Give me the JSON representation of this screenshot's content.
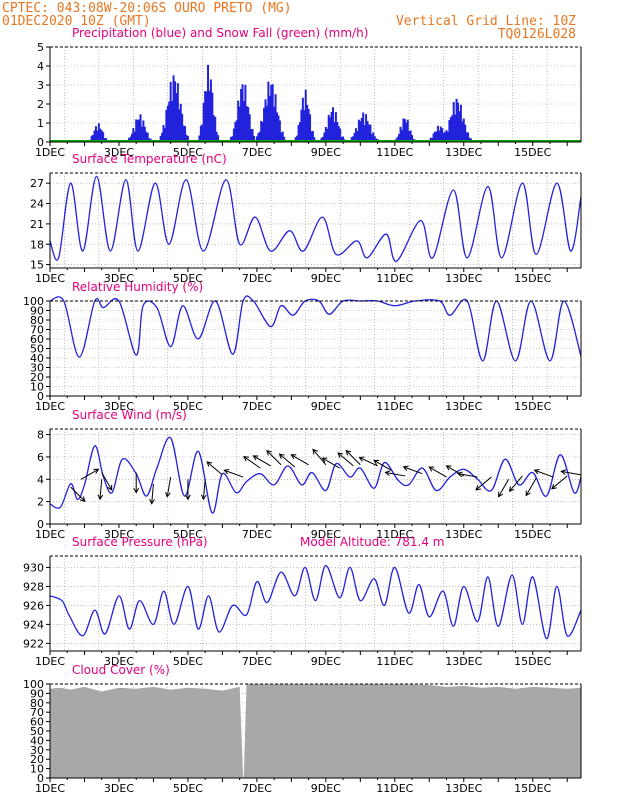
{
  "header": {
    "line1_left": "CPTEC:   043:08W-20:06S  OURO PRETO (MG)",
    "line2_left": "01DEC2020 10Z (GMT)",
    "line1_right": "Vertical Grid Line: 10Z",
    "line2_right": "TQ0126L028"
  },
  "colors": {
    "header": "#e87722",
    "title": "#e5007e",
    "series": "#2222dd",
    "snow": "#00aa00",
    "cloud": "#a8a8a8",
    "arrow": "#000000"
  },
  "chart_data": [
    {
      "id": "precip",
      "type": "bar",
      "title": "Precipitation (blue) and Snow Fall (green) (mm/h)",
      "ylim": [
        0,
        5
      ],
      "yticks": [
        0,
        1,
        2,
        3,
        4,
        5
      ],
      "xtick_labels": [
        "1DEC",
        "3DEC",
        "5DEC",
        "7DEC",
        "9DEC",
        "11DEC",
        "13DEC",
        "15DEC"
      ],
      "x_unit": "days since 01DEC 00Z",
      "series": [
        {
          "name": "Precipitation",
          "peaks": [
            [
              1.4,
              1.0
            ],
            [
              2.6,
              1.5
            ],
            [
              3.6,
              3.7
            ],
            [
              4.6,
              4.1
            ],
            [
              5.6,
              3.3
            ],
            [
              6.4,
              3.4
            ],
            [
              7.4,
              2.8
            ],
            [
              8.2,
              1.9
            ],
            [
              9.1,
              1.6
            ],
            [
              10.3,
              1.4
            ],
            [
              11.3,
              0.9
            ],
            [
              11.8,
              2.4
            ]
          ]
        },
        {
          "name": "Snow Fall",
          "values": [
            0
          ]
        }
      ]
    },
    {
      "id": "temp",
      "type": "line",
      "title": "Surface Temperature (nC)",
      "ylim": [
        14.5,
        28.5
      ],
      "yticks": [
        15,
        18,
        21,
        24,
        27
      ],
      "xtick_labels": [
        "1DEC",
        "3DEC",
        "5DEC",
        "7DEC",
        "9DEC",
        "11DEC",
        "13DEC",
        "15DEC"
      ],
      "x": [
        0,
        0.25,
        0.6,
        0.95,
        1.35,
        1.75,
        2.2,
        2.55,
        3.05,
        3.45,
        3.95,
        4.45,
        5.1,
        5.5,
        5.95,
        6.4,
        6.95,
        7.35,
        7.9,
        8.3,
        8.9,
        9.2,
        9.75,
        10.05,
        10.75,
        11.1,
        11.7,
        12.1,
        12.7,
        13.1,
        13.7,
        14.1,
        14.7,
        15.1,
        15.4
      ],
      "values": [
        18.5,
        16,
        27,
        17,
        28,
        17,
        27.5,
        17,
        27,
        18,
        27.5,
        17,
        27.5,
        18,
        22,
        17,
        20,
        17,
        22,
        16.5,
        18.5,
        16,
        19.5,
        15.5,
        21.5,
        16,
        26,
        16,
        26.5,
        16,
        27,
        16.5,
        27,
        17,
        25
      ]
    },
    {
      "id": "rh",
      "type": "line",
      "title": "Relative Humidity (%)",
      "ylim": [
        0,
        100
      ],
      "yticks": [
        0,
        10,
        20,
        30,
        40,
        50,
        60,
        70,
        80,
        90,
        100
      ],
      "xtick_labels": [
        "1DEC",
        "3DEC",
        "5DEC",
        "7DEC",
        "9DEC",
        "11DEC",
        "13DEC",
        "15DEC"
      ],
      "x": [
        0,
        0.4,
        0.85,
        1.3,
        1.55,
        2.0,
        2.5,
        2.7,
        3.1,
        3.5,
        3.85,
        4.3,
        4.8,
        5.3,
        5.6,
        5.9,
        6.4,
        6.7,
        7.05,
        7.4,
        7.8,
        8.1,
        8.5,
        9.0,
        9.5,
        10.0,
        10.6,
        11.3,
        11.6,
        12.1,
        12.55,
        12.95,
        13.5,
        13.95,
        14.5,
        14.9,
        15.4
      ],
      "values": [
        100,
        100,
        41,
        100,
        93,
        100,
        43,
        95,
        93,
        52,
        95,
        60,
        100,
        44,
        100,
        100,
        73,
        95,
        85,
        100,
        100,
        86,
        100,
        100,
        100,
        95,
        100,
        100,
        85,
        100,
        37,
        100,
        37,
        100,
        37,
        100,
        42
      ]
    },
    {
      "id": "wind",
      "type": "line",
      "title": "Surface Wind (m/s)",
      "ylim": [
        0,
        8.5
      ],
      "yticks": [
        0,
        2,
        4,
        6,
        8
      ],
      "xtick_labels": [
        "1DEC",
        "3DEC",
        "5DEC",
        "7DEC",
        "9DEC",
        "11DEC",
        "13DEC",
        "15DEC"
      ],
      "x": [
        0,
        0.3,
        0.6,
        0.8,
        1.0,
        1.3,
        1.55,
        1.8,
        2.1,
        2.5,
        2.8,
        3.1,
        3.5,
        3.9,
        4.3,
        4.7,
        5.0,
        5.4,
        5.7,
        6.1,
        6.5,
        6.9,
        7.3,
        7.6,
        8.0,
        8.3,
        8.7,
        9.0,
        9.4,
        9.7,
        10.1,
        10.4,
        10.8,
        11.2,
        11.6,
        12.0,
        12.4,
        12.8,
        13.2,
        13.6,
        14.0,
        14.4,
        14.8,
        15.2,
        15.4
      ],
      "values": [
        1.8,
        1.5,
        3.6,
        2.2,
        3.5,
        7.0,
        4.2,
        2.8,
        5.8,
        4.5,
        2.5,
        5.0,
        7.7,
        2.5,
        6.5,
        1.0,
        4.5,
        2.8,
        3.8,
        4.5,
        3.5,
        5.2,
        3.5,
        4.6,
        3.0,
        5.4,
        4.2,
        5.0,
        3.2,
        5.5,
        3.9,
        3.5,
        5.0,
        3.0,
        4.2,
        4.9,
        4.0,
        3.0,
        5.8,
        3.5,
        4.6,
        2.5,
        6.2,
        2.8,
        4.2
      ],
      "barbs": [
        [
          0.6,
          3.3,
          -45
        ],
        [
          0.9,
          4.0,
          30
        ],
        [
          1.5,
          4.6,
          -60
        ],
        [
          1.5,
          4.0,
          -95
        ],
        [
          2.5,
          4.6,
          -90
        ],
        [
          3.0,
          3.6,
          -95
        ],
        [
          3.5,
          4.2,
          -100
        ],
        [
          4.0,
          4.0,
          -90
        ],
        [
          4.5,
          4.0,
          -95
        ],
        [
          5.0,
          4.4,
          140
        ],
        [
          5.6,
          4.2,
          160
        ],
        [
          6.1,
          5.0,
          145
        ],
        [
          6.4,
          5.2,
          150
        ],
        [
          6.7,
          5.3,
          135
        ],
        [
          7.1,
          5.1,
          140
        ],
        [
          7.5,
          5.3,
          150
        ],
        [
          8.0,
          5.3,
          130
        ],
        [
          8.4,
          5.0,
          150
        ],
        [
          8.8,
          5.2,
          140
        ],
        [
          9.0,
          5.3,
          135
        ],
        [
          9.5,
          5.2,
          155
        ],
        [
          9.9,
          4.8,
          150
        ],
        [
          10.3,
          4.3,
          170
        ],
        [
          10.8,
          4.5,
          160
        ],
        [
          11.5,
          4.2,
          150
        ],
        [
          12.0,
          4.3,
          150
        ],
        [
          12.4,
          4.2,
          170
        ],
        [
          12.8,
          4.2,
          -140
        ],
        [
          13.3,
          4.0,
          -120
        ],
        [
          13.7,
          4.3,
          -130
        ],
        [
          14.1,
          4.1,
          -120
        ],
        [
          14.6,
          4.2,
          160
        ],
        [
          15.0,
          4.3,
          -140
        ],
        [
          15.4,
          4.4,
          170
        ]
      ]
    },
    {
      "id": "pres",
      "type": "line",
      "title": "Surface Pressure (hPa)",
      "subtitle": "Model Altitude: 781.4 m",
      "ylim": [
        921.2,
        931.2
      ],
      "yticks": [
        922,
        924,
        926,
        928,
        930
      ],
      "xtick_labels": [
        "1DEC",
        "3DEC",
        "5DEC",
        "7DEC",
        "9DEC",
        "11DEC",
        "13DEC",
        "15DEC"
      ],
      "x": [
        0,
        0.35,
        0.55,
        0.95,
        1.3,
        1.6,
        2.0,
        2.3,
        2.6,
        3.0,
        3.3,
        3.6,
        4.0,
        4.3,
        4.6,
        4.9,
        5.3,
        5.7,
        6.0,
        6.3,
        6.7,
        7.1,
        7.4,
        7.7,
        8.0,
        8.4,
        8.7,
        9.0,
        9.4,
        9.7,
        10.0,
        10.4,
        10.7,
        11.0,
        11.4,
        11.7,
        12.0,
        12.4,
        12.7,
        13.0,
        13.4,
        13.7,
        14.0,
        14.4,
        14.7,
        15.0,
        15.4
      ],
      "values": [
        927,
        926.5,
        925,
        922.8,
        925.5,
        923,
        927,
        923.5,
        926.5,
        924,
        927.5,
        924,
        928,
        923.5,
        927,
        923.2,
        926,
        925,
        928.5,
        926.3,
        929.5,
        927,
        930,
        926.5,
        930.2,
        926.8,
        930,
        926.5,
        928.8,
        926,
        930,
        925.2,
        928.2,
        924.8,
        927.5,
        923.8,
        928,
        924.3,
        929,
        923.8,
        929.2,
        924,
        929,
        922.5,
        928,
        922.8,
        925.5
      ]
    },
    {
      "id": "cloud",
      "type": "area",
      "title": "Cloud Cover (%)",
      "ylim": [
        0,
        100
      ],
      "yticks": [
        0,
        10,
        20,
        30,
        40,
        50,
        60,
        70,
        80,
        90,
        100
      ],
      "xtick_labels": [
        "1DEC",
        "3DEC",
        "5DEC",
        "7DEC",
        "9DEC",
        "11DEC",
        "13DEC",
        "15DEC"
      ],
      "x": [
        0,
        0.3,
        0.6,
        1.0,
        1.5,
        2.0,
        2.5,
        3.0,
        3.5,
        4.0,
        4.5,
        5.0,
        5.5,
        5.6,
        5.62,
        5.7,
        6.5,
        7.0,
        8.0,
        9.0,
        10.0,
        11.0,
        11.5,
        12.0,
        12.5,
        13.0,
        13.5,
        14.0,
        14.5,
        15.0,
        15.4
      ],
      "values": [
        95,
        96,
        94,
        97,
        92,
        96,
        95,
        97,
        94,
        96,
        95,
        93,
        97,
        1,
        1,
        100,
        100,
        100,
        100,
        100,
        100,
        99,
        97,
        98,
        96,
        97,
        95,
        97,
        96,
        95,
        96
      ]
    }
  ]
}
